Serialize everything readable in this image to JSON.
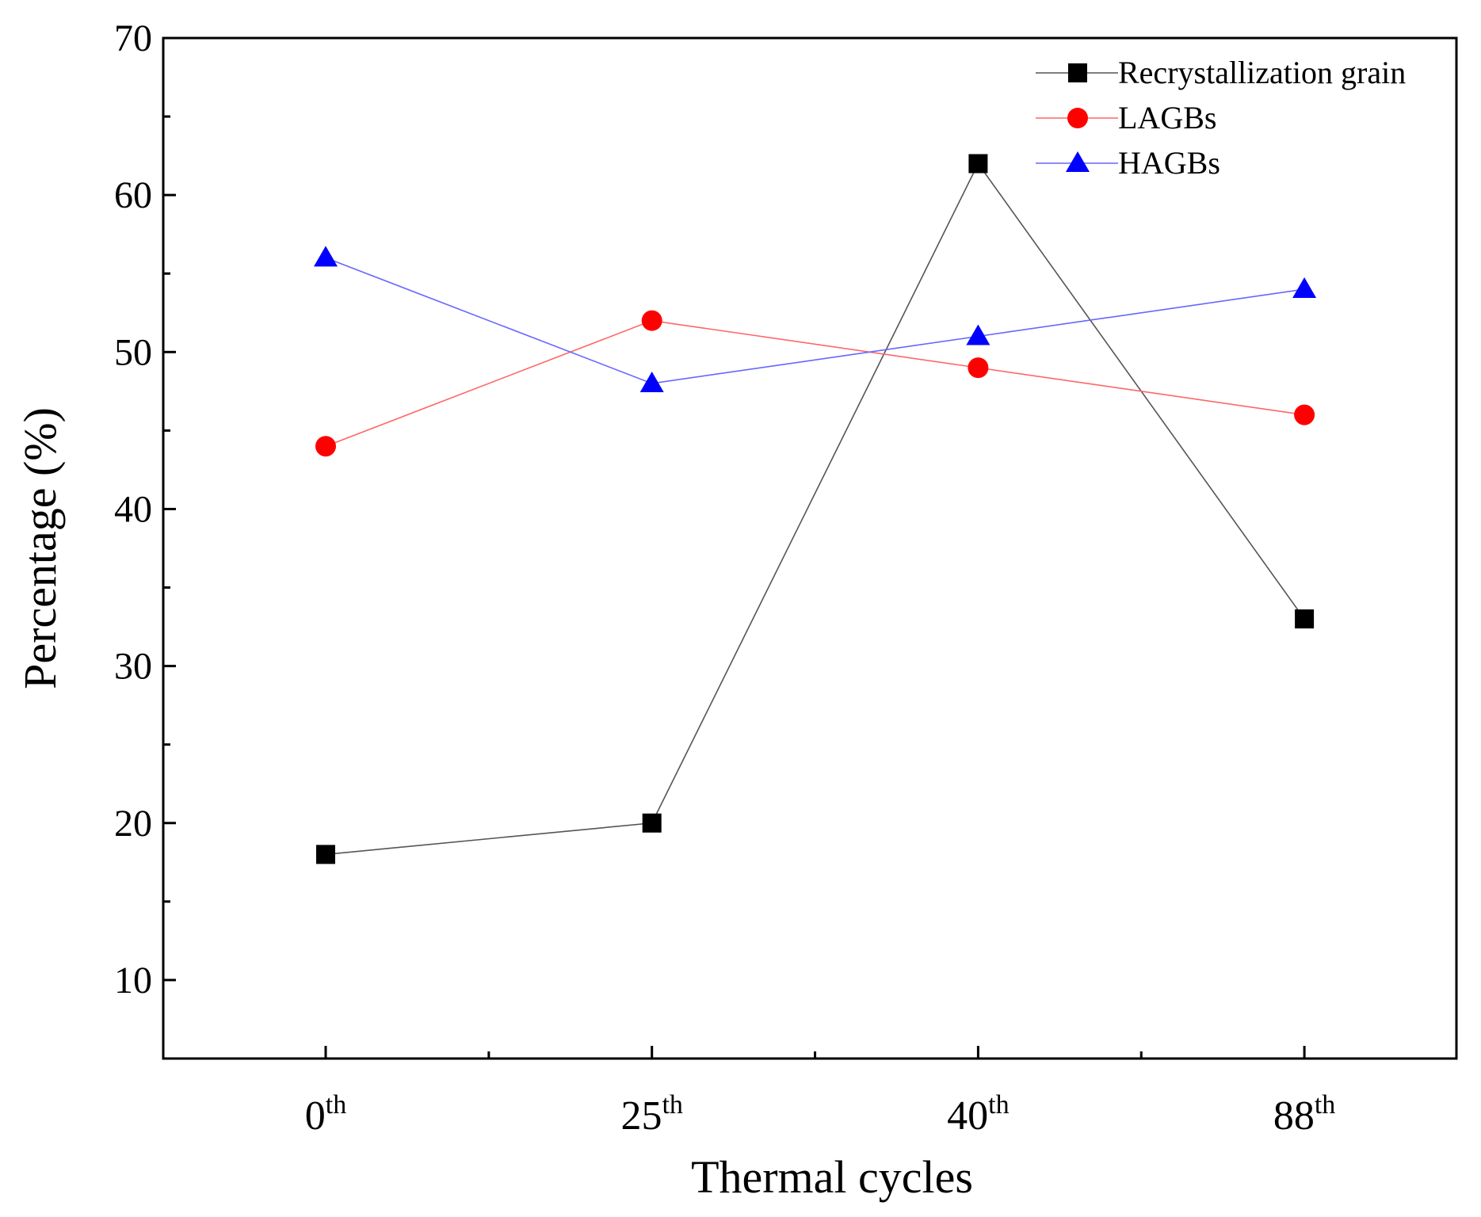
{
  "chart_data": {
    "type": "line",
    "title": "",
    "xlabel": "Thermal cycles",
    "ylabel": "Percentage (%)",
    "categories": [
      {
        "base": "0",
        "sup": "th"
      },
      {
        "base": "25",
        "sup": "th"
      },
      {
        "base": "40",
        "sup": "th"
      },
      {
        "base": "88",
        "sup": "th"
      }
    ],
    "ylim": [
      5,
      70
    ],
    "yticks": [
      10,
      20,
      30,
      40,
      50,
      60,
      70
    ],
    "grid": false,
    "legend_position": "top-right",
    "series": [
      {
        "name": "Recrystallization grain",
        "marker": "square",
        "color": "#000000",
        "line_color": "#555555",
        "values": [
          18,
          20,
          62,
          33
        ]
      },
      {
        "name": "LAGBs",
        "marker": "circle",
        "color": "#ff0000",
        "line_color": "#ff6666",
        "values": [
          44,
          52,
          49,
          46
        ]
      },
      {
        "name": "HAGBs",
        "marker": "triangle",
        "color": "#0000ff",
        "line_color": "#6666ff",
        "values": [
          56,
          48,
          51,
          54
        ]
      }
    ]
  }
}
